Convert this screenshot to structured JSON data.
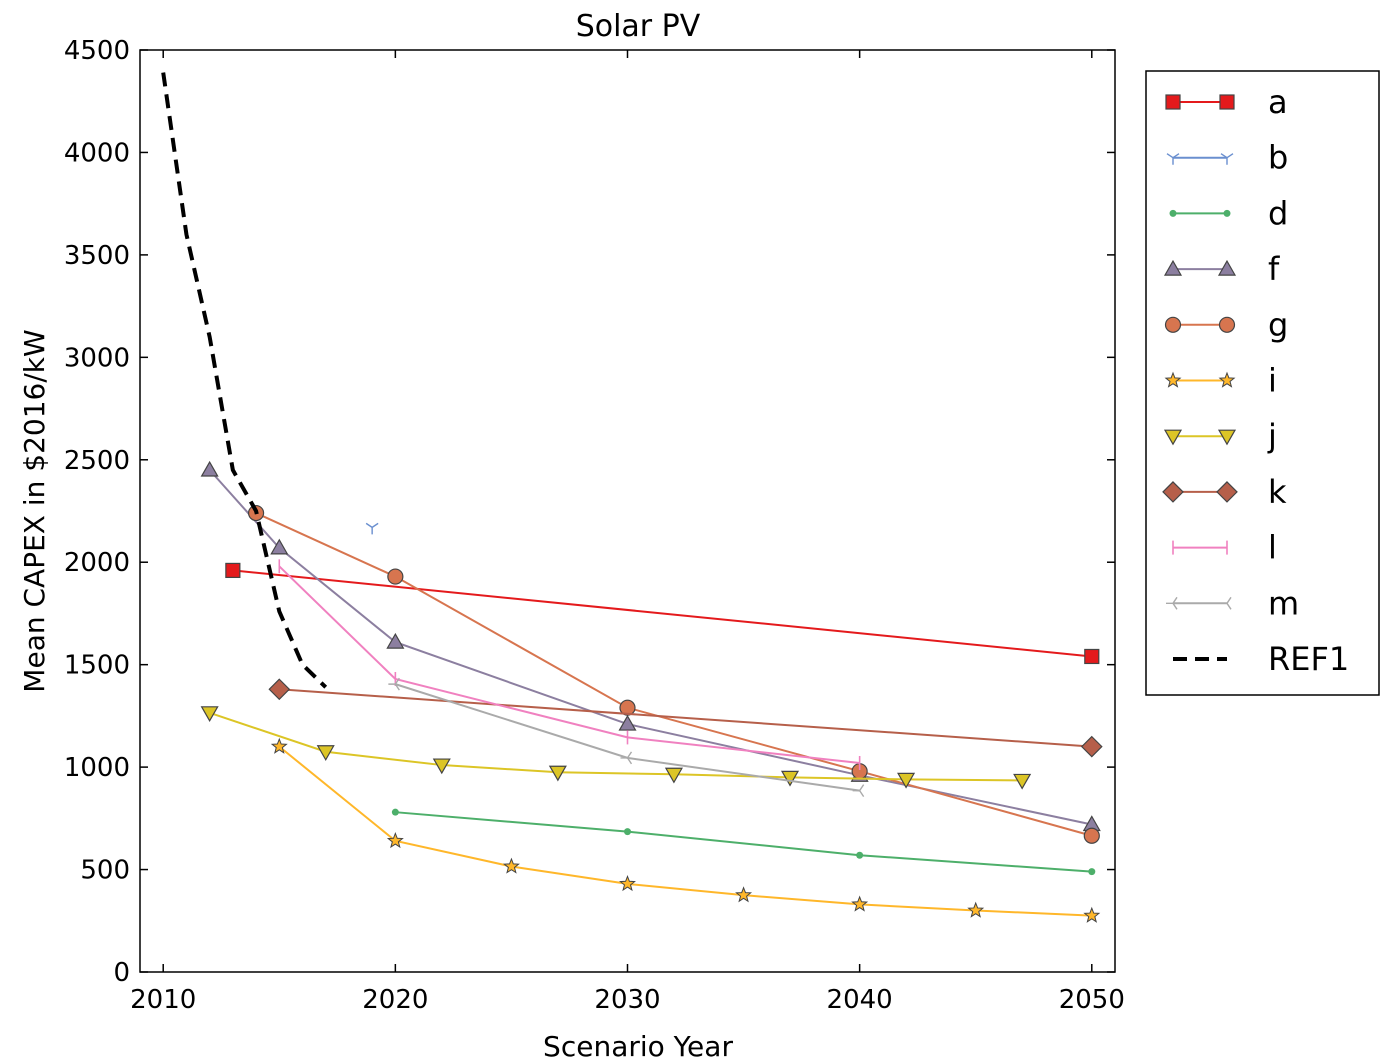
{
  "chart_data": {
    "type": "line",
    "title": "Solar PV",
    "xlabel": "Scenario Year",
    "ylabel": "Mean CAPEX in $2016/kW",
    "xlim": [
      2009,
      2051
    ],
    "ylim": [
      0,
      4500
    ],
    "xticks": [
      2010,
      2020,
      2030,
      2040,
      2050
    ],
    "yticks": [
      0,
      500,
      1000,
      1500,
      2000,
      2500,
      3000,
      3500,
      4000,
      4500
    ],
    "grid": false,
    "legend_position": "outside-right",
    "series": [
      {
        "name": "a",
        "color": "#e41a1c",
        "marker": "square",
        "x": [
          2013,
          2050
        ],
        "y": [
          1960,
          1540
        ]
      },
      {
        "name": "b",
        "color": "#6a8fcf",
        "marker": "tri-down",
        "x": [
          2019
        ],
        "y": [
          2170
        ]
      },
      {
        "name": "d",
        "color": "#4daf6a",
        "marker": "dot",
        "x": [
          2020,
          2030,
          2040,
          2050
        ],
        "y": [
          780,
          685,
          570,
          490
        ]
      },
      {
        "name": "f",
        "color": "#8c7fa0",
        "marker": "triangle-up",
        "x": [
          2012,
          2015,
          2020,
          2030,
          2040,
          2050
        ],
        "y": [
          2450,
          2070,
          1610,
          1210,
          960,
          720
        ]
      },
      {
        "name": "g",
        "color": "#d7754f",
        "marker": "circle",
        "x": [
          2014,
          2020,
          2030,
          2040,
          2050
        ],
        "y": [
          2240,
          1930,
          1290,
          980,
          665
        ]
      },
      {
        "name": "i",
        "color": "#ffb72a",
        "marker": "star",
        "x": [
          2015,
          2020,
          2025,
          2030,
          2035,
          2040,
          2045,
          2050
        ],
        "y": [
          1100,
          640,
          515,
          430,
          375,
          330,
          300,
          275
        ]
      },
      {
        "name": "j",
        "color": "#dcc526",
        "marker": "triangle-down",
        "x": [
          2012,
          2017,
          2022,
          2027,
          2032,
          2037,
          2042,
          2047
        ],
        "y": [
          1265,
          1075,
          1010,
          975,
          965,
          950,
          940,
          935
        ]
      },
      {
        "name": "k",
        "color": "#b65f4a",
        "marker": "diamond",
        "x": [
          2015,
          2050
        ],
        "y": [
          1380,
          1100
        ]
      },
      {
        "name": "l",
        "color": "#f081c0",
        "marker": "vline",
        "x": [
          2015,
          2020,
          2030,
          2040
        ],
        "y": [
          1980,
          1430,
          1145,
          1020
        ]
      },
      {
        "name": "m",
        "color": "#aaaaaa",
        "marker": "tri-left",
        "x": [
          2020,
          2030,
          2040
        ],
        "y": [
          1405,
          1045,
          885
        ]
      },
      {
        "name": "REF1",
        "color": "#000000",
        "marker": "none",
        "dashed": true,
        "x": [
          2010,
          2011,
          2012,
          2013,
          2014,
          2015,
          2016,
          2017
        ],
        "y": [
          4390,
          3600,
          3100,
          2450,
          2250,
          1760,
          1500,
          1390
        ]
      }
    ]
  }
}
